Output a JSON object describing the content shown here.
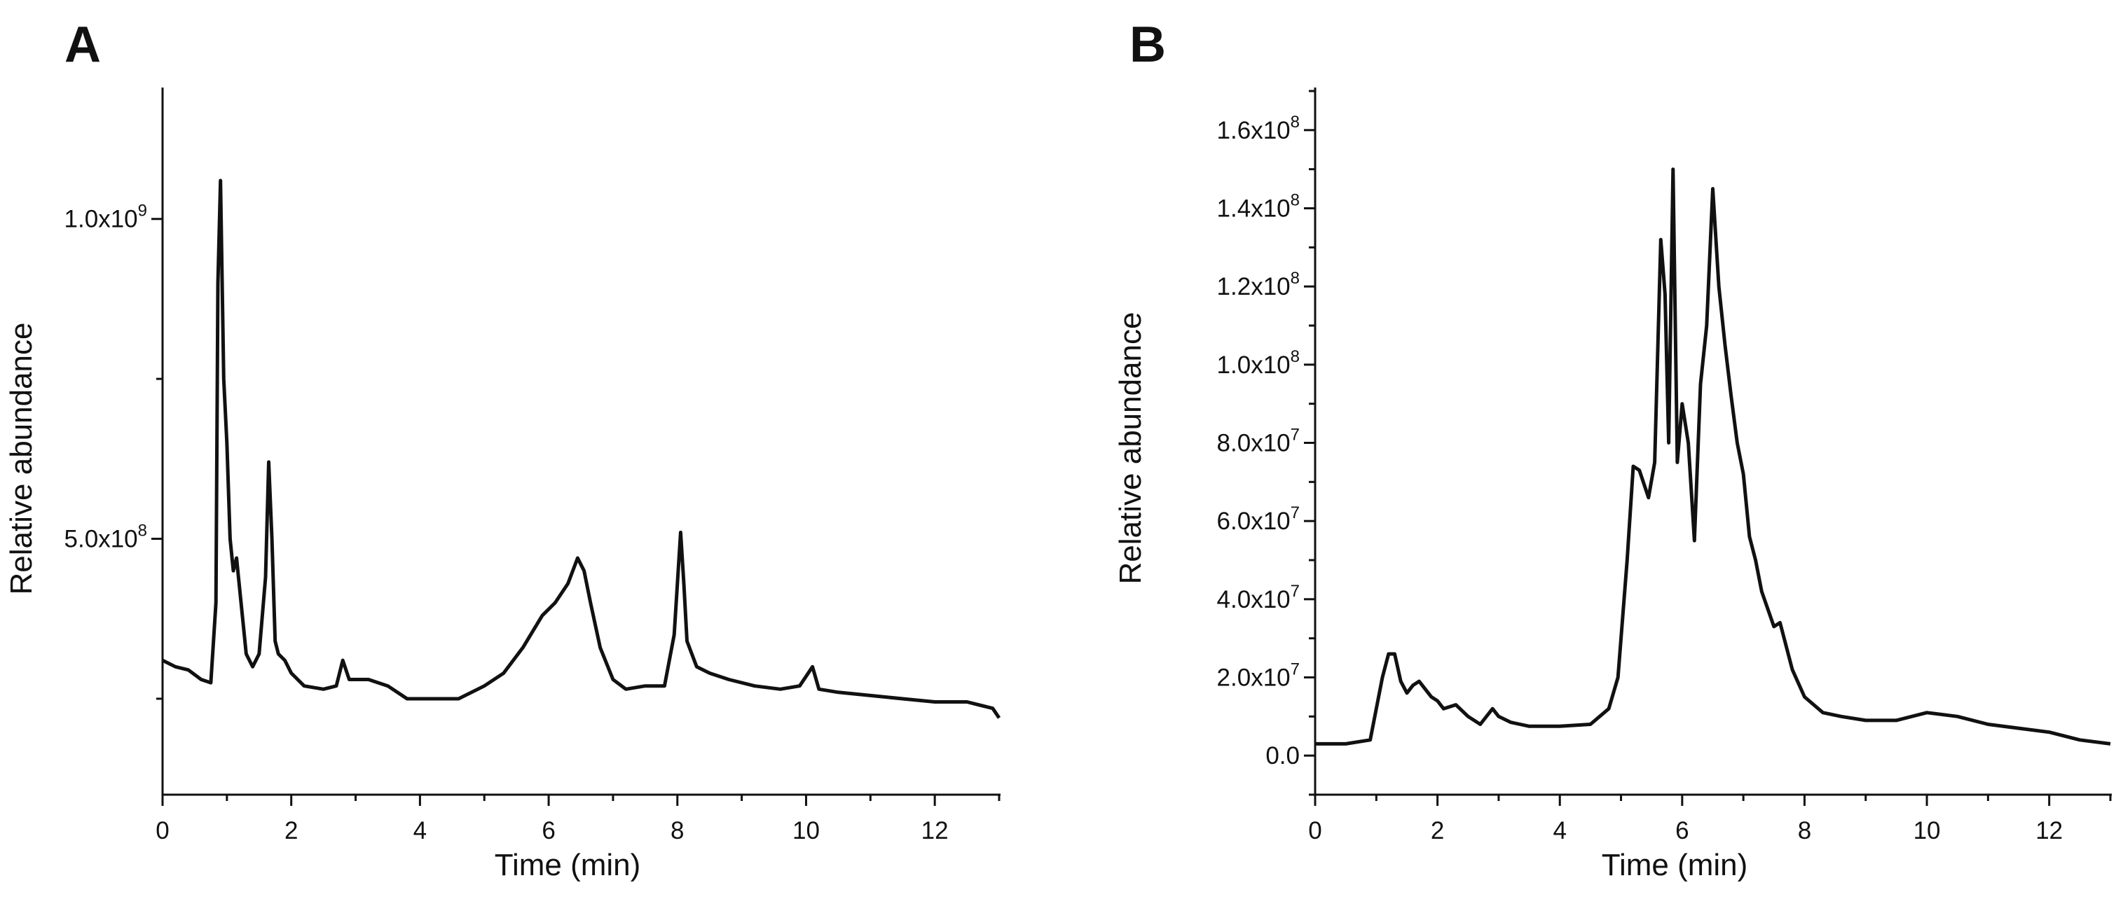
{
  "chart_data": [
    {
      "type": "line",
      "panel_label": "A",
      "title": "",
      "xlabel": "Time (min)",
      "ylabel": "Relative abundance",
      "xlim": [
        0,
        13
      ],
      "ylim": [
        100000000,
        1200000000
      ],
      "x_ticks": [
        {
          "value": 0,
          "label": "0"
        },
        {
          "value": 2,
          "label": "2"
        },
        {
          "value": 4,
          "label": "4"
        },
        {
          "value": 6,
          "label": "6"
        },
        {
          "value": 8,
          "label": "8"
        },
        {
          "value": 10,
          "label": "10"
        },
        {
          "value": 12,
          "label": "12"
        }
      ],
      "x_minor_ticks": [
        1,
        3,
        5,
        7,
        9,
        11,
        13
      ],
      "y_ticks": [
        {
          "value": 500000000,
          "mantissa": "5.0x10",
          "exponent": "8"
        },
        {
          "value": 1000000000,
          "mantissa": "1.0x10",
          "exponent": "9"
        }
      ],
      "y_minor_ticks": [
        250000000,
        750000000
      ],
      "legend": "none",
      "grid": false,
      "series": [
        {
          "x": [
            0,
            0.2,
            0.4,
            0.6,
            0.75,
            0.83,
            0.86,
            0.9,
            0.95,
            1.0,
            1.05,
            1.1,
            1.15,
            1.2,
            1.3,
            1.4,
            1.5,
            1.6,
            1.65,
            1.7,
            1.75,
            1.8,
            1.9,
            2.0,
            2.2,
            2.5,
            2.7,
            2.8,
            2.9,
            3.2,
            3.5,
            3.8,
            4.0,
            4.3,
            4.6,
            5.0,
            5.3,
            5.6,
            5.9,
            6.1,
            6.3,
            6.45,
            6.55,
            6.65,
            6.8,
            7.0,
            7.2,
            7.5,
            7.8,
            7.95,
            8.05,
            8.1,
            8.15,
            8.3,
            8.5,
            8.8,
            9.2,
            9.6,
            9.9,
            10.1,
            10.2,
            10.5,
            11.0,
            11.5,
            12.0,
            12.5,
            12.9,
            13.0
          ],
          "y": [
            310000000,
            300000000,
            295000000,
            280000000,
            275000000,
            400000000,
            900000000,
            1060000000,
            750000000,
            650000000,
            500000000,
            450000000,
            470000000,
            420000000,
            320000000,
            300000000,
            320000000,
            440000000,
            620000000,
            500000000,
            340000000,
            320000000,
            310000000,
            290000000,
            270000000,
            265000000,
            270000000,
            310000000,
            280000000,
            280000000,
            270000000,
            250000000,
            250000000,
            250000000,
            250000000,
            270000000,
            290000000,
            330000000,
            380000000,
            400000000,
            430000000,
            470000000,
            450000000,
            400000000,
            330000000,
            280000000,
            265000000,
            270000000,
            270000000,
            350000000,
            510000000,
            430000000,
            340000000,
            300000000,
            290000000,
            280000000,
            270000000,
            265000000,
            270000000,
            300000000,
            265000000,
            260000000,
            255000000,
            250000000,
            245000000,
            245000000,
            235000000,
            220000000
          ]
        }
      ]
    },
    {
      "type": "line",
      "panel_label": "B",
      "title": "",
      "xlabel": "Time (min)",
      "ylabel": "Relative abundance",
      "xlim": [
        0,
        13
      ],
      "ylim": [
        -10000000,
        170000000
      ],
      "x_ticks": [
        {
          "value": 0,
          "label": "0"
        },
        {
          "value": 2,
          "label": "2"
        },
        {
          "value": 4,
          "label": "4"
        },
        {
          "value": 6,
          "label": "6"
        },
        {
          "value": 8,
          "label": "8"
        },
        {
          "value": 10,
          "label": "10"
        },
        {
          "value": 12,
          "label": "12"
        }
      ],
      "x_minor_ticks": [
        1,
        3,
        5,
        7,
        9,
        11,
        13
      ],
      "y_ticks": [
        {
          "value": 0,
          "mantissa": "0.0",
          "exponent": ""
        },
        {
          "value": 20000000,
          "mantissa": "2.0x10",
          "exponent": "7"
        },
        {
          "value": 40000000,
          "mantissa": "4.0x10",
          "exponent": "7"
        },
        {
          "value": 60000000,
          "mantissa": "6.0x10",
          "exponent": "7"
        },
        {
          "value": 80000000,
          "mantissa": "8.0x10",
          "exponent": "7"
        },
        {
          "value": 100000000,
          "mantissa": "1.0x10",
          "exponent": "8"
        },
        {
          "value": 120000000,
          "mantissa": "1.2x10",
          "exponent": "8"
        },
        {
          "value": 140000000,
          "mantissa": "1.4x10",
          "exponent": "8"
        },
        {
          "value": 160000000,
          "mantissa": "1.6x10",
          "exponent": "8"
        }
      ],
      "y_minor_ticks": [
        -10000000,
        10000000,
        30000000,
        50000000,
        70000000,
        90000000,
        110000000,
        130000000,
        150000000,
        170000000
      ],
      "legend": "none",
      "grid": false,
      "series": [
        {
          "x": [
            0,
            0.5,
            0.9,
            1.0,
            1.1,
            1.2,
            1.3,
            1.4,
            1.5,
            1.6,
            1.7,
            1.8,
            1.9,
            2.0,
            2.1,
            2.3,
            2.5,
            2.7,
            2.9,
            3.0,
            3.2,
            3.5,
            4.0,
            4.5,
            4.8,
            4.95,
            5.1,
            5.2,
            5.3,
            5.45,
            5.55,
            5.65,
            5.72,
            5.78,
            5.85,
            5.92,
            6.0,
            6.1,
            6.2,
            6.3,
            6.4,
            6.5,
            6.6,
            6.7,
            6.8,
            6.9,
            7.0,
            7.1,
            7.2,
            7.3,
            7.5,
            7.6,
            7.8,
            8.0,
            8.3,
            8.6,
            9.0,
            9.5,
            10.0,
            10.5,
            11.0,
            11.5,
            12.0,
            12.5,
            13.0
          ],
          "y": [
            3000000,
            3000000,
            4000000,
            12000000,
            20000000,
            26000000,
            26000000,
            19000000,
            16000000,
            18000000,
            19000000,
            17000000,
            15000000,
            14000000,
            12000000,
            13000000,
            10000000,
            8000000,
            12000000,
            10000000,
            8500000,
            7500000,
            7500000,
            8000000,
            12000000,
            20000000,
            50000000,
            74000000,
            73000000,
            66000000,
            75000000,
            132000000,
            118000000,
            80000000,
            150000000,
            75000000,
            90000000,
            80000000,
            55000000,
            95000000,
            110000000,
            145000000,
            120000000,
            105000000,
            92000000,
            80000000,
            72000000,
            56000000,
            50000000,
            42000000,
            33000000,
            34000000,
            22000000,
            15000000,
            11000000,
            10000000,
            9000000,
            9000000,
            11000000,
            10000000,
            8000000,
            7000000,
            6000000,
            4000000,
            3000000
          ]
        }
      ]
    }
  ]
}
